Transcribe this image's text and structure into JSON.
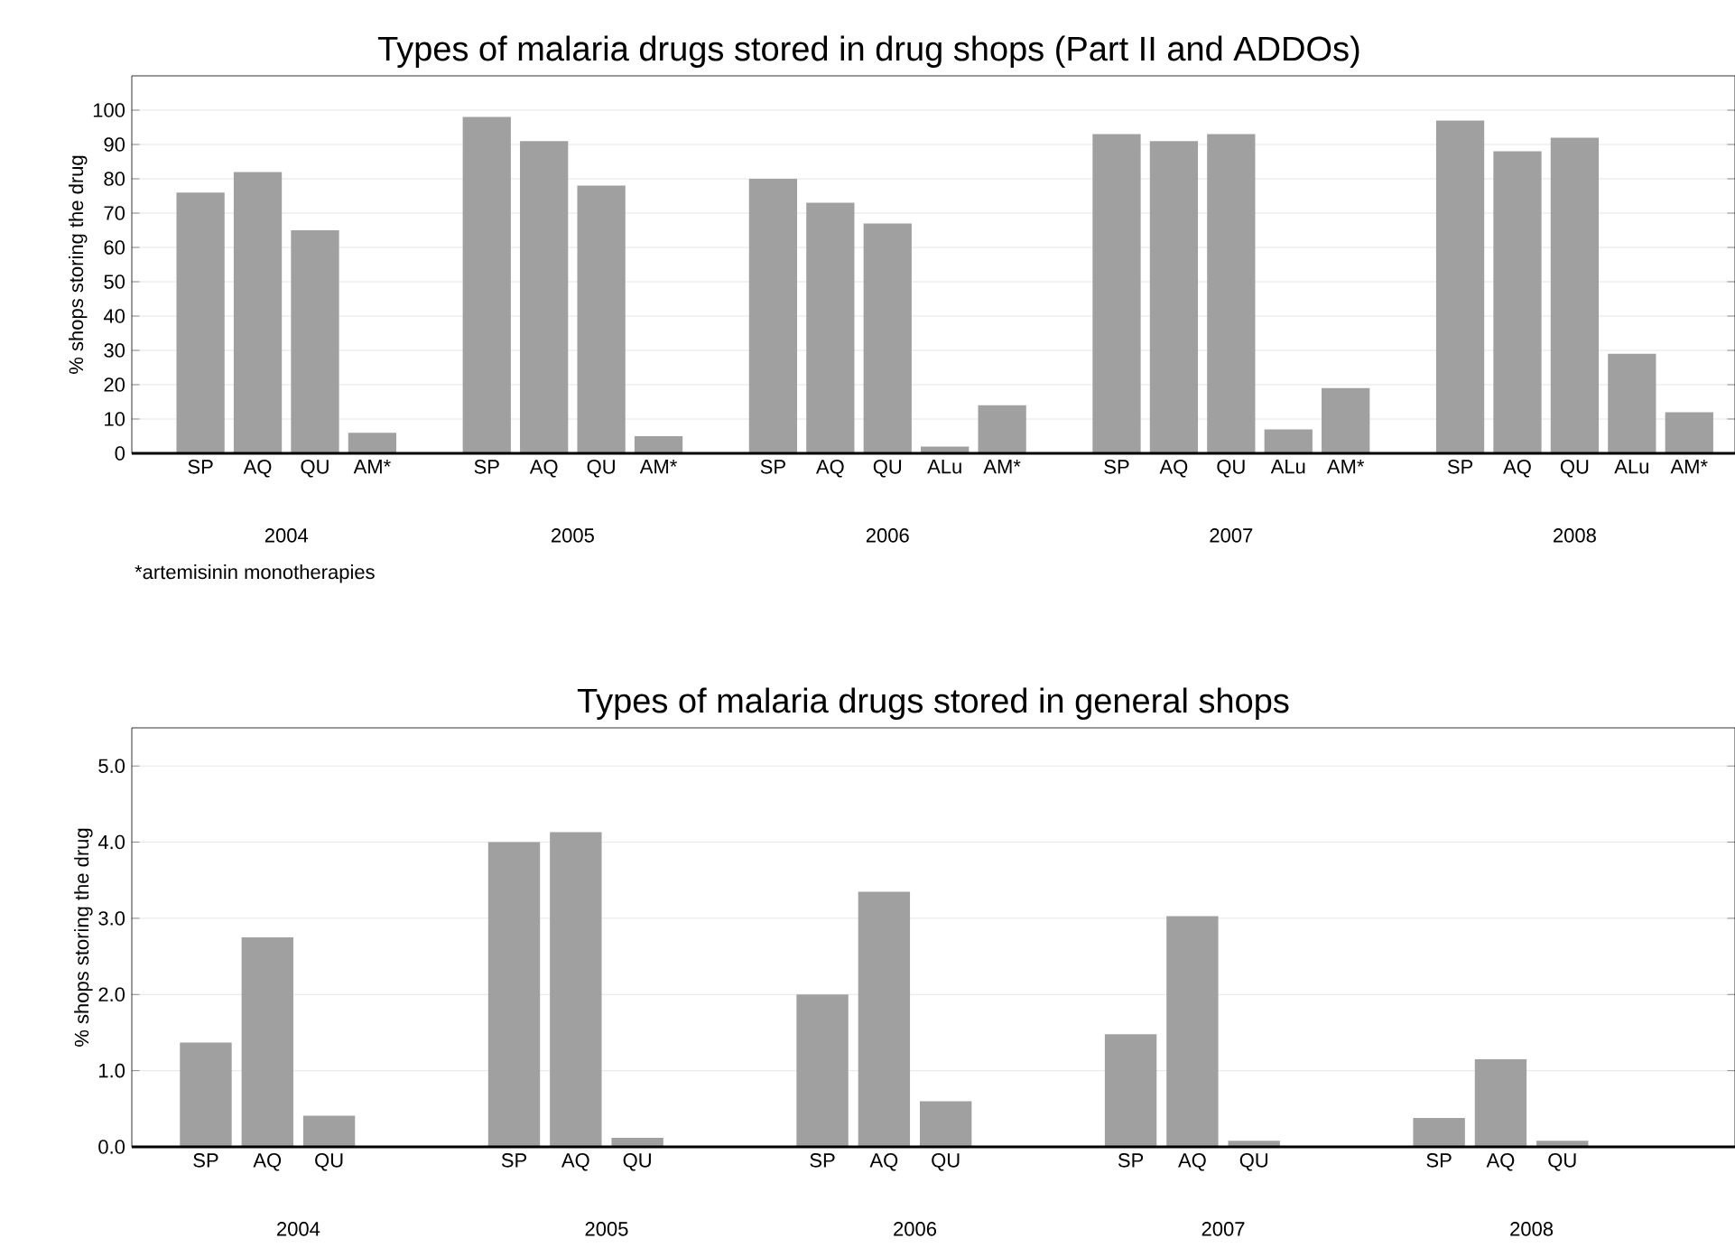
{
  "chart_data": [
    {
      "type": "bar",
      "title": "Types of malaria drugs stored in drug shops (Part II and ADDOs)",
      "ylabel": "% shops storing the drug",
      "color": "#a0a0a0",
      "grid": "y",
      "categories": [
        "SP",
        "AQ",
        "QU",
        "AM*",
        null,
        "SP",
        "AQ",
        "QU",
        "AM*",
        null,
        "SP",
        "AQ",
        "QU",
        "ALu",
        "AM*",
        null,
        "SP",
        "AQ",
        "QU",
        "ALu",
        "AM*",
        null,
        "SP",
        "AQ",
        "QU",
        "ALu",
        "AM*"
      ],
      "values": [
        76,
        82,
        65,
        6,
        null,
        98,
        91,
        78,
        5,
        null,
        80,
        73,
        67,
        2,
        14,
        null,
        93,
        91,
        93,
        7,
        19,
        null,
        97,
        88,
        92,
        29,
        12
      ],
      "ylim": [
        0,
        110
      ],
      "yticks": [
        0,
        10,
        20,
        30,
        40,
        50,
        60,
        70,
        80,
        90,
        100
      ],
      "annotations": [
        "2004",
        "2005",
        "2006",
        "2007",
        "2008",
        "*artemisinin monotherapies"
      ]
    },
    {
      "type": "bar",
      "title": "Types of malaria drugs stored in general shops",
      "ylabel": "% shops storing the drug",
      "color": "#a0a0a0",
      "grid": "y",
      "categories": [
        "SP",
        "AQ",
        "QU",
        null,
        null,
        "SP",
        "AQ",
        "QU",
        null,
        null,
        "SP",
        "AQ",
        "QU",
        null,
        null,
        "SP",
        "AQ",
        "QU",
        null,
        null,
        "SP",
        "AQ",
        "QU",
        null
      ],
      "values": [
        1.37,
        2.75,
        0.41,
        0,
        null,
        4.0,
        4.13,
        0.12,
        0,
        null,
        2.0,
        3.35,
        0.6,
        0,
        null,
        1.48,
        3.03,
        0.08,
        0,
        null,
        0.38,
        1.15,
        0.08,
        0
      ],
      "ylim": [
        0,
        5.5
      ],
      "yticks": [
        {
          "value": 0,
          "label": "0.0"
        },
        {
          "value": 1,
          "label": "1.0"
        },
        {
          "value": 2,
          "label": "2.0"
        },
        {
          "value": 3,
          "label": "3.0"
        },
        {
          "value": 4,
          "label": "4.0"
        },
        {
          "value": 5,
          "label": "5.0"
        }
      ],
      "annotations": [
        "2004",
        "2005",
        "2006",
        "2007",
        "2008"
      ]
    }
  ]
}
